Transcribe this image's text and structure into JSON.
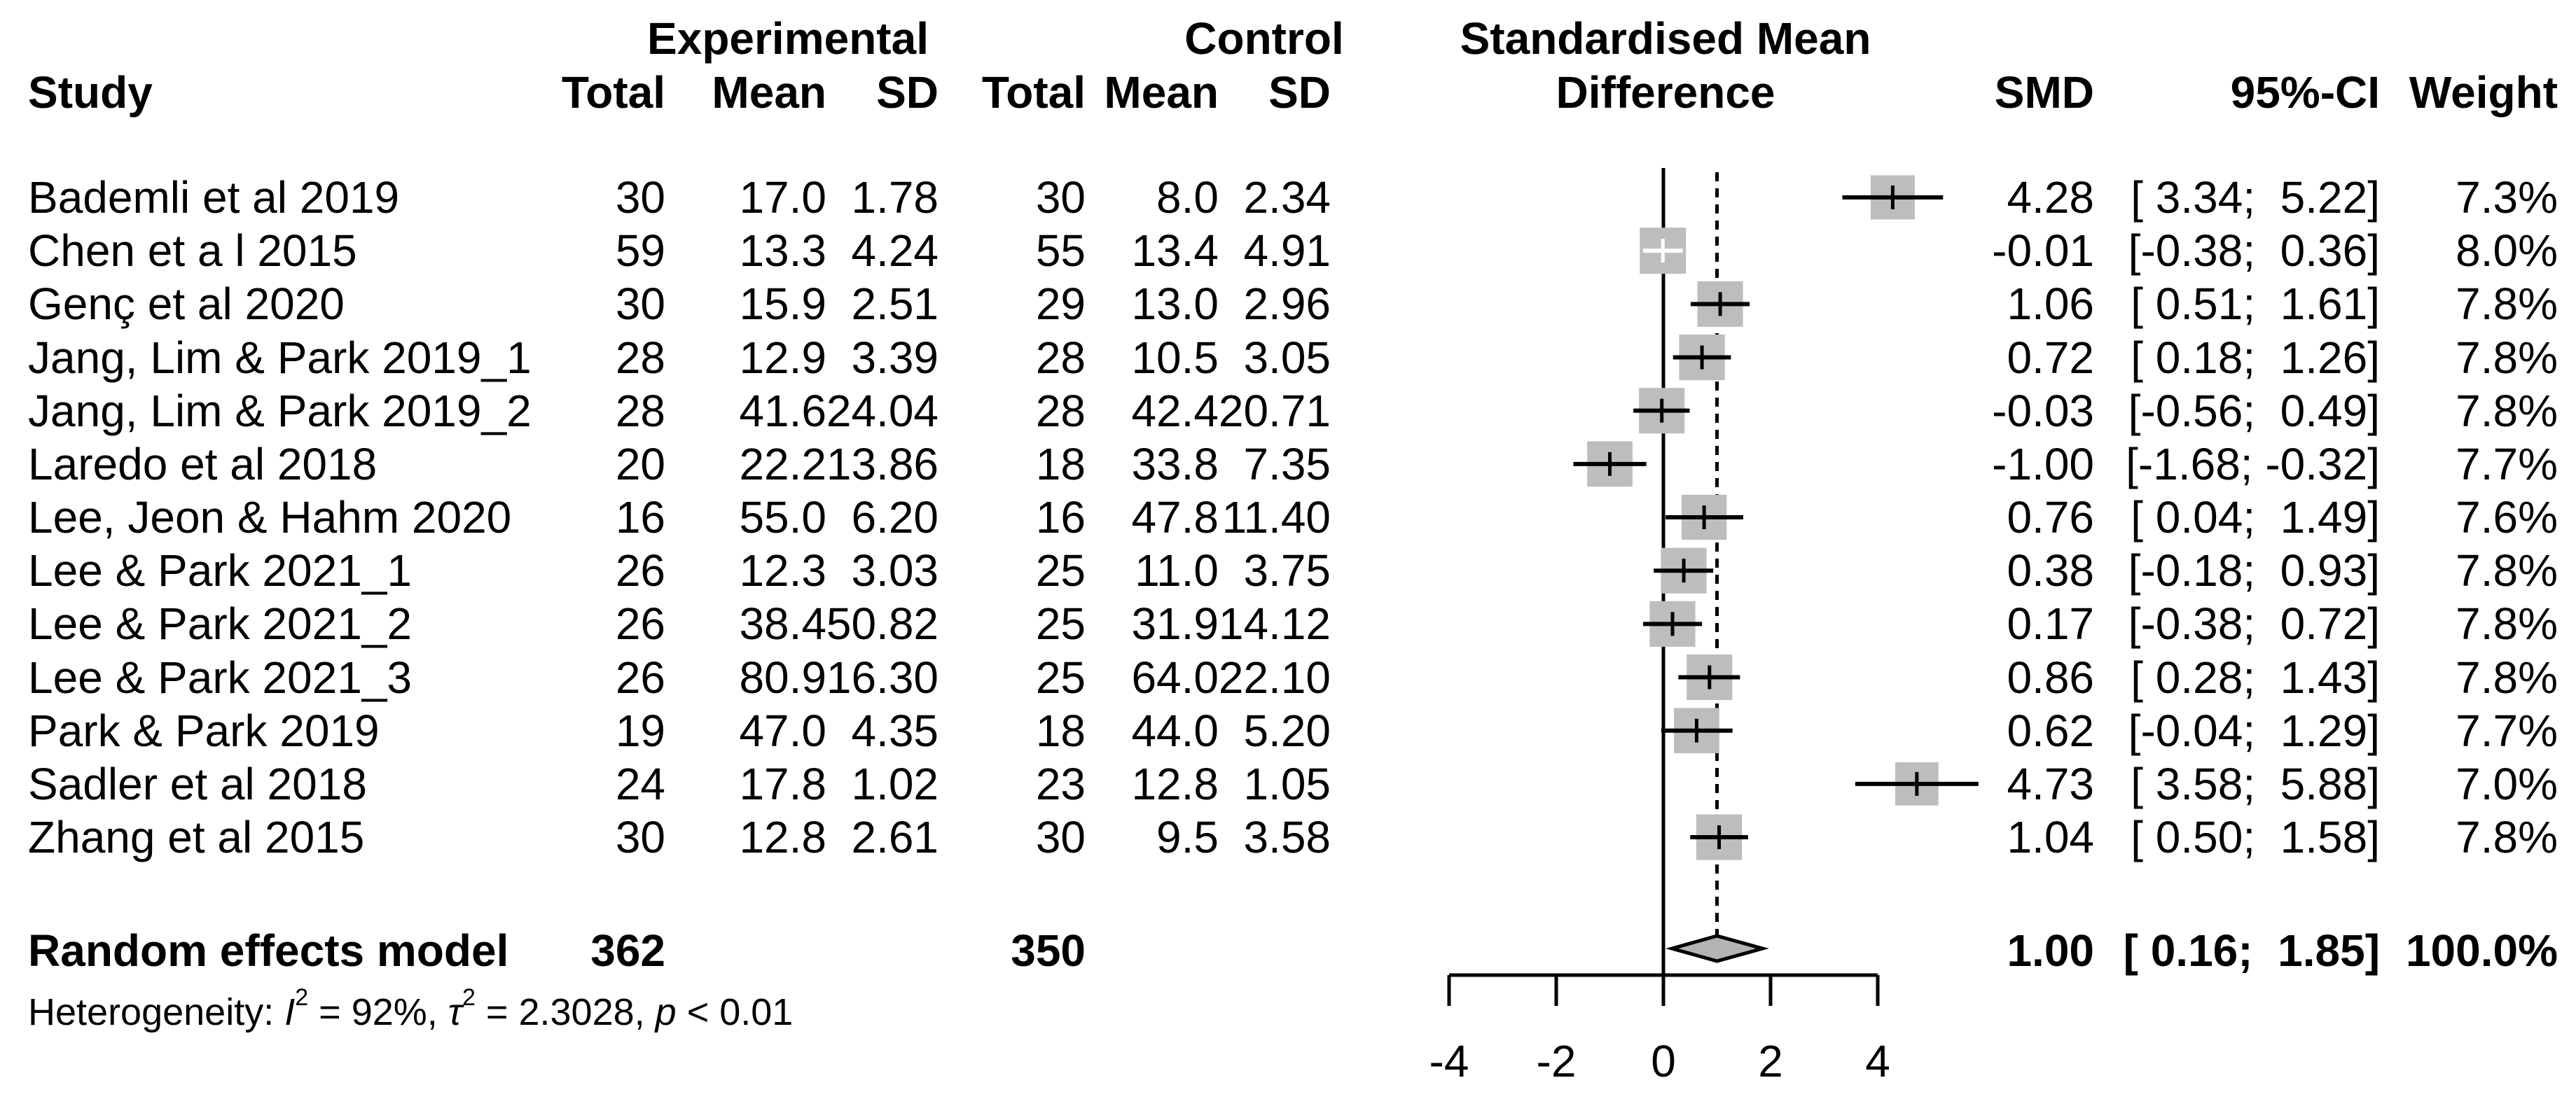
{
  "header": {
    "group_experimental": "Experimental",
    "group_control": "Control",
    "plot_title_line1": "Standardised Mean",
    "plot_title_line2": "Difference",
    "col_study": "Study",
    "col_total_exp": "Total",
    "col_mean_exp": "Mean",
    "col_sd_exp": "SD",
    "col_total_ctrl": "Total",
    "col_mean_ctrl": "Mean",
    "col_sd_ctrl": "SD",
    "col_smd": "SMD",
    "col_ci": "95%-CI",
    "col_weight": "Weight"
  },
  "colors": {
    "text": "#000000",
    "line": "#000000",
    "square_fill": "#bdbdbd",
    "diamond_fill": "#b4b4b4",
    "background": "#ffffff",
    "contained_cross": "#ffffff"
  },
  "chart_data": {
    "type": "forest",
    "effect_measure": "Standardised Mean Difference",
    "x_axis": {
      "ticks": [
        -4,
        -2,
        0,
        2,
        4
      ],
      "range": [
        -4.4,
        4.4
      ],
      "reference_line": 0,
      "pooled_line": 1.0
    },
    "legend_position": "none",
    "grid": false,
    "studies": [
      {
        "study": "Bademli et al 2019",
        "e_total": "30",
        "e_mean": "17.0",
        "e_sd": "1.78",
        "c_total": "30",
        "c_mean": "8.0",
        "c_sd": "2.34",
        "smd": 4.28,
        "ci_low": 3.34,
        "ci_high": 5.22,
        "smd_text": "4.28",
        "ci_text": "[ 3.34;  5.22]",
        "weight": 7.3,
        "weight_text": "7.3%"
      },
      {
        "study": "Chen et a l 2015",
        "e_total": "59",
        "e_mean": "13.3",
        "e_sd": "4.24",
        "c_total": "55",
        "c_mean": "13.4",
        "c_sd": "4.91",
        "smd": -0.01,
        "ci_low": -0.38,
        "ci_high": 0.36,
        "smd_text": "-0.01",
        "ci_text": "[-0.38;  0.36]",
        "weight": 8.0,
        "weight_text": "8.0%"
      },
      {
        "study": "Genç et al 2020",
        "e_total": "30",
        "e_mean": "15.9",
        "e_sd": "2.51",
        "c_total": "29",
        "c_mean": "13.0",
        "c_sd": "2.96",
        "smd": 1.06,
        "ci_low": 0.51,
        "ci_high": 1.61,
        "smd_text": "1.06",
        "ci_text": "[ 0.51;  1.61]",
        "weight": 7.8,
        "weight_text": "7.8%"
      },
      {
        "study": "Jang, Lim & Park 2019_1",
        "e_total": "28",
        "e_mean": "12.9",
        "e_sd": "3.39",
        "c_total": "28",
        "c_mean": "10.5",
        "c_sd": "3.05",
        "smd": 0.72,
        "ci_low": 0.18,
        "ci_high": 1.26,
        "smd_text": "0.72",
        "ci_text": "[ 0.18;  1.26]",
        "weight": 7.8,
        "weight_text": "7.8%"
      },
      {
        "study": "Jang, Lim & Park 2019_2",
        "e_total": "28",
        "e_mean": "41.6",
        "e_sd": "24.04",
        "c_total": "28",
        "c_mean": "42.4",
        "c_sd": "20.71",
        "smd": -0.03,
        "ci_low": -0.56,
        "ci_high": 0.49,
        "smd_text": "-0.03",
        "ci_text": "[-0.56;  0.49]",
        "weight": 7.8,
        "weight_text": "7.8%"
      },
      {
        "study": "Laredo et al 2018",
        "e_total": "20",
        "e_mean": "22.2",
        "e_sd": "13.86",
        "c_total": "18",
        "c_mean": "33.8",
        "c_sd": "7.35",
        "smd": -1.0,
        "ci_low": -1.68,
        "ci_high": -0.32,
        "smd_text": "-1.00",
        "ci_text": "[-1.68; -0.32]",
        "weight": 7.7,
        "weight_text": "7.7%"
      },
      {
        "study": "Lee, Jeon & Hahm 2020",
        "e_total": "16",
        "e_mean": "55.0",
        "e_sd": "6.20",
        "c_total": "16",
        "c_mean": "47.8",
        "c_sd": "11.40",
        "smd": 0.76,
        "ci_low": 0.04,
        "ci_high": 1.49,
        "smd_text": "0.76",
        "ci_text": "[ 0.04;  1.49]",
        "weight": 7.6,
        "weight_text": "7.6%"
      },
      {
        "study": "Lee & Park 2021_1",
        "e_total": "26",
        "e_mean": "12.3",
        "e_sd": "3.03",
        "c_total": "25",
        "c_mean": "11.0",
        "c_sd": "3.75",
        "smd": 0.38,
        "ci_low": -0.18,
        "ci_high": 0.93,
        "smd_text": "0.38",
        "ci_text": "[-0.18;  0.93]",
        "weight": 7.8,
        "weight_text": "7.8%"
      },
      {
        "study": "Lee & Park 2021_2",
        "e_total": "26",
        "e_mean": "38.4",
        "e_sd": "50.82",
        "c_total": "25",
        "c_mean": "31.9",
        "c_sd": "14.12",
        "smd": 0.17,
        "ci_low": -0.38,
        "ci_high": 0.72,
        "smd_text": "0.17",
        "ci_text": "[-0.38;  0.72]",
        "weight": 7.8,
        "weight_text": "7.8%"
      },
      {
        "study": "Lee & Park 2021_3",
        "e_total": "26",
        "e_mean": "80.9",
        "e_sd": "16.30",
        "c_total": "25",
        "c_mean": "64.0",
        "c_sd": "22.10",
        "smd": 0.86,
        "ci_low": 0.28,
        "ci_high": 1.43,
        "smd_text": "0.86",
        "ci_text": "[ 0.28;  1.43]",
        "weight": 7.8,
        "weight_text": "7.8%"
      },
      {
        "study": "Park & Park 2019",
        "e_total": "19",
        "e_mean": "47.0",
        "e_sd": "4.35",
        "c_total": "18",
        "c_mean": "44.0",
        "c_sd": "5.20",
        "smd": 0.62,
        "ci_low": -0.04,
        "ci_high": 1.29,
        "smd_text": "0.62",
        "ci_text": "[-0.04;  1.29]",
        "weight": 7.7,
        "weight_text": "7.7%"
      },
      {
        "study": "Sadler et al 2018",
        "e_total": "24",
        "e_mean": "17.8",
        "e_sd": "1.02",
        "c_total": "23",
        "c_mean": "12.8",
        "c_sd": "1.05",
        "smd": 4.73,
        "ci_low": 3.58,
        "ci_high": 5.88,
        "smd_text": "4.73",
        "ci_text": "[ 3.58;  5.88]",
        "weight": 7.0,
        "weight_text": "7.0%"
      },
      {
        "study": "Zhang et al 2015",
        "e_total": "30",
        "e_mean": "12.8",
        "e_sd": "2.61",
        "c_total": "30",
        "c_mean": "9.5",
        "c_sd": "3.58",
        "smd": 1.04,
        "ci_low": 0.5,
        "ci_high": 1.58,
        "smd_text": "1.04",
        "ci_text": "[ 0.50;  1.58]",
        "weight": 7.8,
        "weight_text": "7.8%"
      }
    ],
    "overall": {
      "label": "Random effects model",
      "e_total": "362",
      "c_total": "350",
      "smd": 1.0,
      "ci_low": 0.16,
      "ci_high": 1.85,
      "smd_text": "1.00",
      "ci_text": "[ 0.16;  1.85]",
      "weight_text": "100.0%"
    },
    "heterogeneity": {
      "prefix": "Heterogeneity: ",
      "i_sym": "I",
      "i_sup": "2",
      "seg1": " = 92%, ",
      "tau_sym": "τ",
      "tau_sup": "2",
      "seg2": " = 2.3028, ",
      "p_sym": "p",
      "seg3": " < 0.01"
    }
  }
}
